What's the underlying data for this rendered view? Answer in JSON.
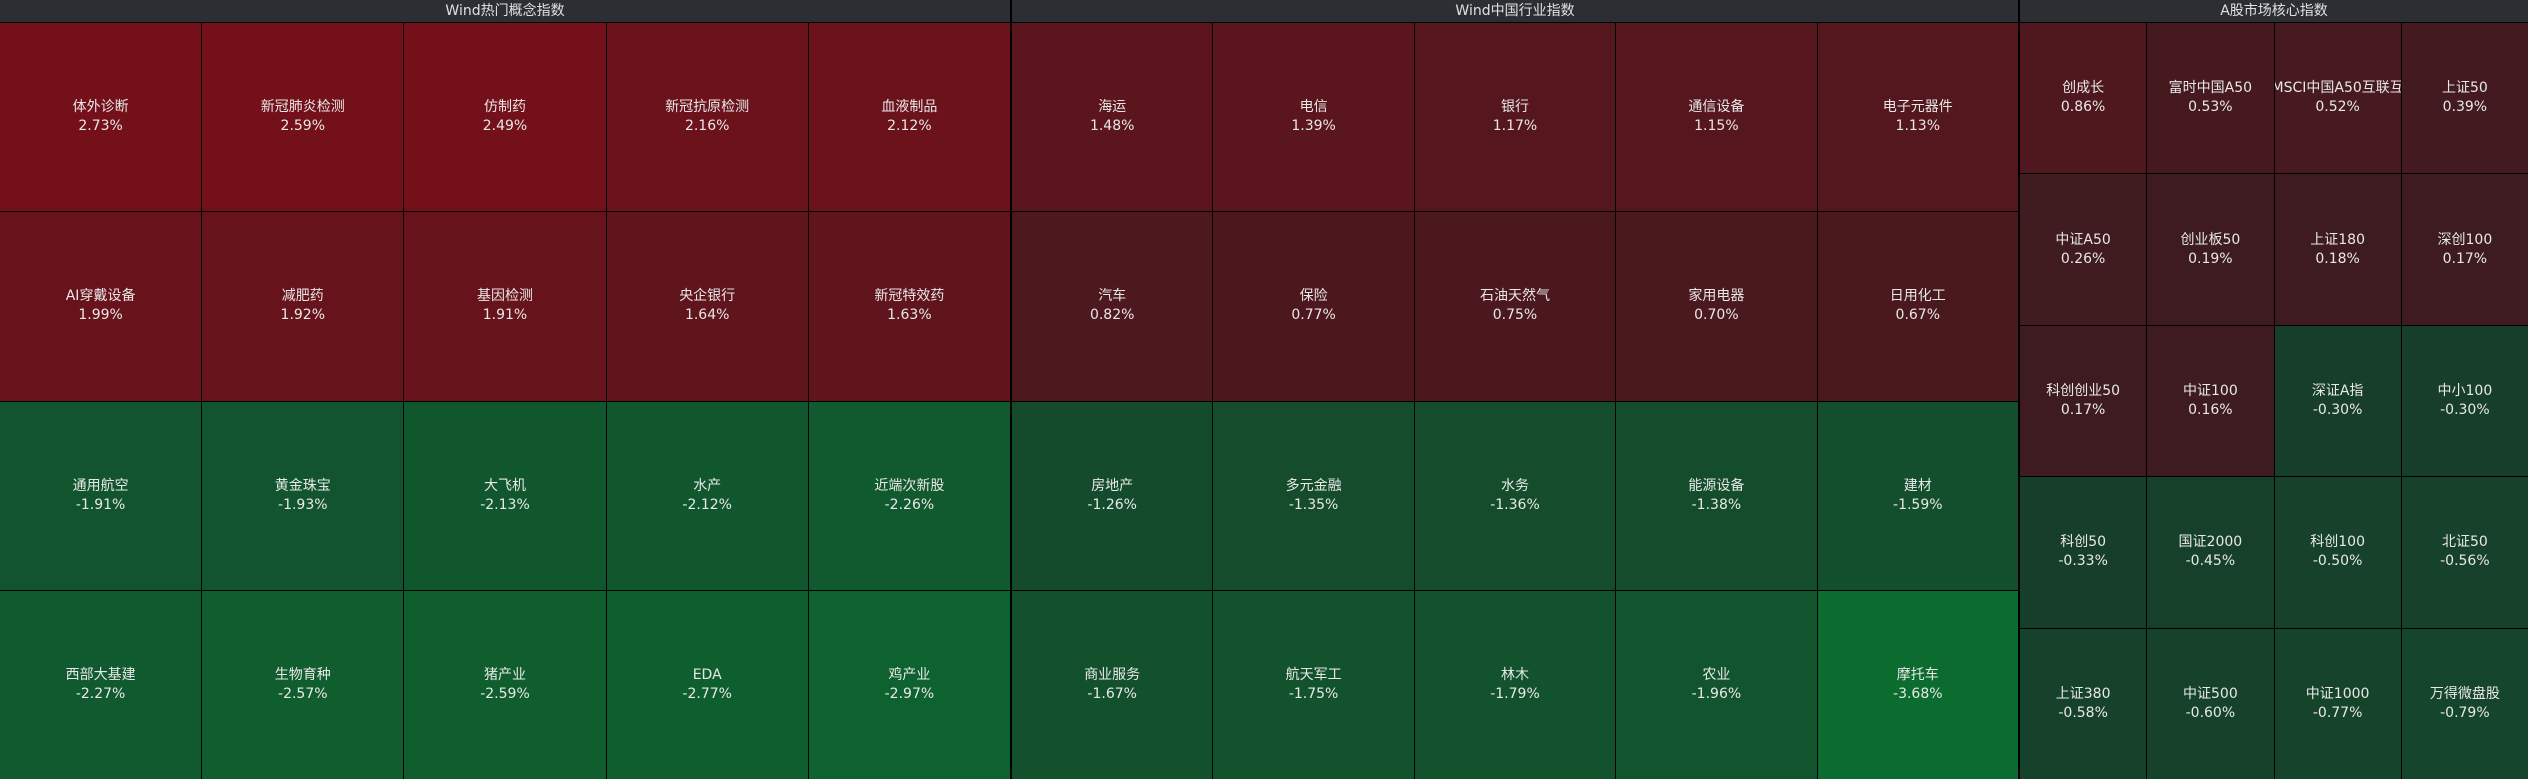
{
  "panels": [
    {
      "title": "Wind热门概念指数",
      "cols": 5,
      "cells": [
        {
          "name": "体外诊断",
          "change": "2.73%"
        },
        {
          "name": "新冠肺炎检测",
          "change": "2.59%"
        },
        {
          "name": "仿制药",
          "change": "2.49%"
        },
        {
          "name": "新冠抗原检测",
          "change": "2.16%"
        },
        {
          "name": "血液制品",
          "change": "2.12%"
        },
        {
          "name": "AI穿戴设备",
          "change": "1.99%"
        },
        {
          "name": "减肥药",
          "change": "1.92%"
        },
        {
          "name": "基因检测",
          "change": "1.91%"
        },
        {
          "name": "央企银行",
          "change": "1.64%"
        },
        {
          "name": "新冠特效药",
          "change": "1.63%"
        },
        {
          "name": "通用航空",
          "change": "-1.91%"
        },
        {
          "name": "黄金珠宝",
          "change": "-1.93%"
        },
        {
          "name": "大飞机",
          "change": "-2.13%"
        },
        {
          "name": "水产",
          "change": "-2.12%"
        },
        {
          "name": "近端次新股",
          "change": "-2.26%"
        },
        {
          "name": "西部大基建",
          "change": "-2.27%"
        },
        {
          "name": "生物育种",
          "change": "-2.57%"
        },
        {
          "name": "猪产业",
          "change": "-2.59%"
        },
        {
          "name": "EDA",
          "change": "-2.77%"
        },
        {
          "name": "鸡产业",
          "change": "-2.97%"
        }
      ]
    },
    {
      "title": "Wind中国行业指数",
      "cols": 5,
      "cells": [
        {
          "name": "海运",
          "change": "1.48%"
        },
        {
          "name": "电信",
          "change": "1.39%"
        },
        {
          "name": "银行",
          "change": "1.17%"
        },
        {
          "name": "通信设备",
          "change": "1.15%"
        },
        {
          "name": "电子元器件",
          "change": "1.13%"
        },
        {
          "name": "汽车",
          "change": "0.82%"
        },
        {
          "name": "保险",
          "change": "0.77%"
        },
        {
          "name": "石油天然气",
          "change": "0.75%"
        },
        {
          "name": "家用电器",
          "change": "0.70%"
        },
        {
          "name": "日用化工",
          "change": "0.67%"
        },
        {
          "name": "房地产",
          "change": "-1.26%"
        },
        {
          "name": "多元金融",
          "change": "-1.35%"
        },
        {
          "name": "水务",
          "change": "-1.36%"
        },
        {
          "name": "能源设备",
          "change": "-1.38%"
        },
        {
          "name": "建材",
          "change": "-1.59%"
        },
        {
          "name": "商业服务",
          "change": "-1.67%"
        },
        {
          "name": "航天军工",
          "change": "-1.75%"
        },
        {
          "name": "林木",
          "change": "-1.79%"
        },
        {
          "name": "农业",
          "change": "-1.96%"
        },
        {
          "name": "摩托车",
          "change": "-3.68%"
        }
      ]
    },
    {
      "title": "A股市场核心指数",
      "cols": 4,
      "cells": [
        {
          "name": "创成长",
          "change": "0.86%"
        },
        {
          "name": "富时中国A50",
          "change": "0.53%"
        },
        {
          "name": "MSCI中国A50互联互",
          "change": "0.52%"
        },
        {
          "name": "上证50",
          "change": "0.39%"
        },
        {
          "name": "中证A50",
          "change": "0.26%"
        },
        {
          "name": "创业板50",
          "change": "0.19%"
        },
        {
          "name": "上证180",
          "change": "0.18%"
        },
        {
          "name": "深创100",
          "change": "0.17%"
        },
        {
          "name": "科创创业50",
          "change": "0.17%"
        },
        {
          "name": "中证100",
          "change": "0.16%"
        },
        {
          "name": "深证A指",
          "change": "-0.30%"
        },
        {
          "name": "中小100",
          "change": "-0.30%"
        },
        {
          "name": "科创50",
          "change": "-0.33%"
        },
        {
          "name": "国证2000",
          "change": "-0.45%"
        },
        {
          "name": "科创100",
          "change": "-0.50%"
        },
        {
          "name": "北证50",
          "change": "-0.56%"
        },
        {
          "name": "上证380",
          "change": "-0.58%"
        },
        {
          "name": "中证500",
          "change": "-0.60%"
        },
        {
          "name": "中证1000",
          "change": "-0.77%"
        },
        {
          "name": "万得微盘股",
          "change": "-0.79%"
        }
      ]
    }
  ]
}
